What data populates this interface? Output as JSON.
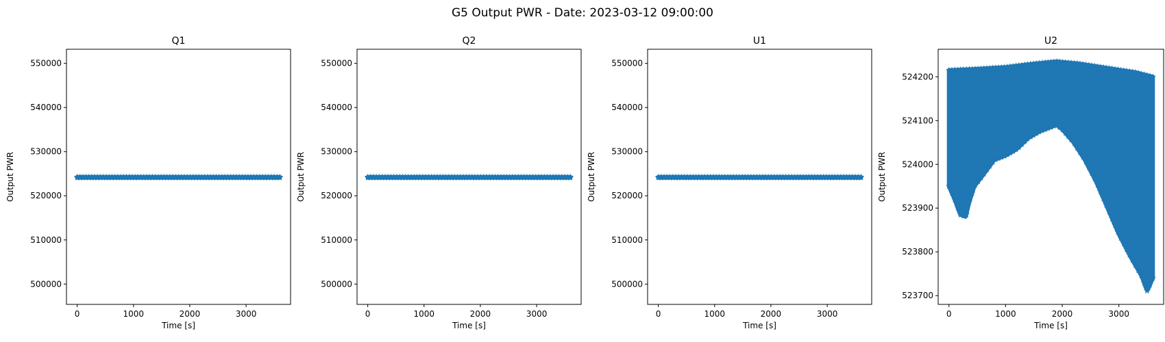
{
  "figure": {
    "title": "G5 Output PWR - Date: 2023-03-12 09:00:00"
  },
  "chart_data": [
    {
      "type": "scatter",
      "title": "Q1",
      "xlabel": "Time [s]",
      "ylabel": "Output PWR",
      "marker": "star",
      "color": "#1f77b4",
      "xlim": [
        -190,
        3790
      ],
      "ylim": [
        495400,
        553200
      ],
      "xticks": [
        0,
        1000,
        2000,
        3000
      ],
      "yticks": [
        500000,
        510000,
        520000,
        530000,
        540000,
        550000
      ],
      "series": [
        {
          "x_range": [
            0,
            3600
          ],
          "y_min": [
            [
              0,
              524100
            ],
            [
              3600,
              524100
            ]
          ],
          "y_max": [
            [
              0,
              524250
            ],
            [
              3600,
              524250
            ]
          ]
        }
      ]
    },
    {
      "type": "scatter",
      "title": "Q2",
      "xlabel": "Time [s]",
      "ylabel": "Output PWR",
      "marker": "star",
      "color": "#1f77b4",
      "xlim": [
        -190,
        3790
      ],
      "ylim": [
        495400,
        553200
      ],
      "xticks": [
        0,
        1000,
        2000,
        3000
      ],
      "yticks": [
        500000,
        510000,
        520000,
        530000,
        540000,
        550000
      ],
      "series": [
        {
          "x_range": [
            0,
            3600
          ],
          "y_min": [
            [
              0,
              524100
            ],
            [
              3600,
              524100
            ]
          ],
          "y_max": [
            [
              0,
              524250
            ],
            [
              3600,
              524250
            ]
          ]
        }
      ]
    },
    {
      "type": "scatter",
      "title": "U1",
      "xlabel": "Time [s]",
      "ylabel": "Output PWR",
      "marker": "star",
      "color": "#1f77b4",
      "xlim": [
        -190,
        3790
      ],
      "ylim": [
        495400,
        553200
      ],
      "xticks": [
        0,
        1000,
        2000,
        3000
      ],
      "yticks": [
        500000,
        510000,
        520000,
        530000,
        540000,
        550000
      ],
      "series": [
        {
          "x_range": [
            0,
            3600
          ],
          "y_min": [
            [
              0,
              524100
            ],
            [
              3600,
              524100
            ]
          ],
          "y_max": [
            [
              0,
              524250
            ],
            [
              3600,
              524250
            ]
          ]
        }
      ]
    },
    {
      "type": "scatter",
      "title": "U2",
      "xlabel": "Time [s]",
      "ylabel": "Output PWR",
      "marker": "star",
      "color": "#1f77b4",
      "xlim": [
        -190,
        3790
      ],
      "ylim": [
        523680,
        524263
      ],
      "xticks": [
        0,
        1000,
        2000,
        3000
      ],
      "yticks": [
        523700,
        523800,
        523900,
        524000,
        524100,
        524200
      ],
      "series": [
        {
          "x_range": [
            0,
            3600
          ],
          "y_max": [
            [
              0,
              524215
            ],
            [
              500,
              524218
            ],
            [
              1000,
              524222
            ],
            [
              1500,
              524230
            ],
            [
              1900,
              524235
            ],
            [
              2300,
              524230
            ],
            [
              2800,
              524220
            ],
            [
              3300,
              524210
            ],
            [
              3600,
              524200
            ]
          ],
          "y_min": [
            [
              0,
              523950
            ],
            [
              100,
              523920
            ],
            [
              200,
              523885
            ],
            [
              300,
              523880
            ],
            [
              350,
              523910
            ],
            [
              450,
              523950
            ],
            [
              600,
              523975
            ],
            [
              800,
              524010
            ],
            [
              1000,
              524020
            ],
            [
              1200,
              524035
            ],
            [
              1400,
              524060
            ],
            [
              1600,
              524075
            ],
            [
              1800,
              524085
            ],
            [
              1900,
              524090
            ],
            [
              2000,
              524080
            ],
            [
              2200,
              524050
            ],
            [
              2400,
              524010
            ],
            [
              2600,
              523960
            ],
            [
              2800,
              523900
            ],
            [
              3000,
              523840
            ],
            [
              3200,
              523790
            ],
            [
              3400,
              523745
            ],
            [
              3500,
              523710
            ],
            [
              3600,
              523740
            ]
          ]
        }
      ]
    }
  ]
}
